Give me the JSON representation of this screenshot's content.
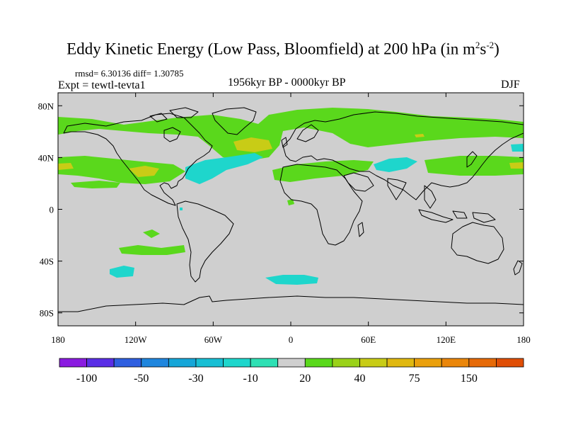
{
  "title": {
    "text": "Eddy Kinetic Energy (Low Pass, Bloomfield) at 200 hPa (in m",
    "sup1": "2",
    "mid": "s",
    "sup2": "-2",
    "end": ")"
  },
  "stats": "rmsd= 6.30136 diff= 1.30785",
  "experiment": "Expt = tewtl-tevta1",
  "period": "1956kyr BP - 0000kyr BP",
  "season": "DJF",
  "axes": {
    "y_ticks": [
      {
        "lat": 80,
        "label": "80N"
      },
      {
        "lat": 40,
        "label": "40N"
      },
      {
        "lat": 0,
        "label": "0"
      },
      {
        "lat": -40,
        "label": "40S"
      },
      {
        "lat": -80,
        "label": "80S"
      }
    ],
    "x_ticks": [
      {
        "lon": -180,
        "label": "180"
      },
      {
        "lon": -120,
        "label": "120W"
      },
      {
        "lon": -60,
        "label": "60W"
      },
      {
        "lon": 0,
        "label": "0"
      },
      {
        "lon": 60,
        "label": "60E"
      },
      {
        "lon": 120,
        "label": "120E"
      },
      {
        "lon": 180,
        "label": "180"
      }
    ]
  },
  "colorbar": {
    "colors": [
      "#8a1be0",
      "#5a2ee6",
      "#2f5fe0",
      "#1f86de",
      "#16a6d8",
      "#18bfd4",
      "#1ed6cc",
      "#2ee0b4",
      "#cfcfcf",
      "#5ad81c",
      "#9ad21a",
      "#c8cc16",
      "#e0b810",
      "#eaa00c",
      "#ea860a",
      "#e66a08",
      "#e04e06"
    ],
    "labels": [
      {
        "index": 1,
        "text": "-100"
      },
      {
        "index": 3,
        "text": "-50"
      },
      {
        "index": 5,
        "text": "-30"
      },
      {
        "index": 7,
        "text": "-10"
      },
      {
        "index": 9,
        "text": "20"
      },
      {
        "index": 11,
        "text": "40"
      },
      {
        "index": 13,
        "text": "75"
      },
      {
        "index": 15,
        "text": "150"
      }
    ]
  }
}
